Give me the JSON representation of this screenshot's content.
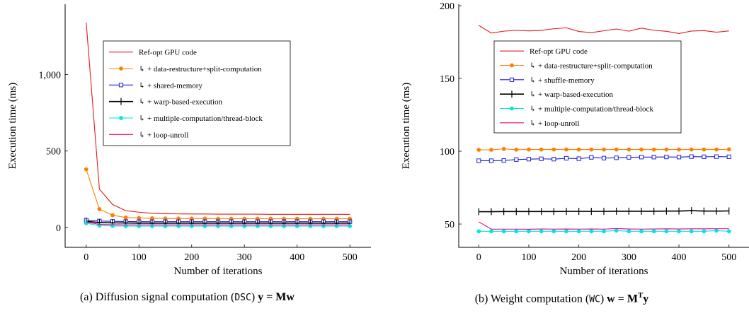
{
  "chart_data": [
    {
      "type": "line",
      "xlabel": "Number of iterations",
      "ylabel": "Execution time (ms)",
      "xlim": [
        -40,
        540
      ],
      "ylim": [
        -130,
        1460
      ],
      "xticks": [
        0,
        100,
        200,
        300,
        400,
        500
      ],
      "yticks": [
        0,
        500,
        1000
      ],
      "ytick_labels": [
        "0",
        "500",
        "1,000"
      ],
      "legend_position": "top-right",
      "caption": {
        "prefix": "(a) Diffusion signal computation (",
        "code": "DSC",
        "suffix": ") ",
        "equation": "y = Mw"
      },
      "x": [
        0,
        25,
        50,
        75,
        100,
        125,
        150,
        175,
        200,
        225,
        250,
        275,
        300,
        325,
        350,
        375,
        400,
        425,
        450,
        475,
        500
      ],
      "series": [
        {
          "name": "Ref-opt GPU code",
          "color": "#e41a1c",
          "marker": "none",
          "values": [
            1340,
            250,
            150,
            110,
            100,
            92,
            90,
            89,
            88,
            88,
            87,
            87,
            87,
            87,
            86,
            86,
            86,
            86,
            86,
            86,
            86
          ]
        },
        {
          "name": "↳ + data-restructure+split-computation",
          "color": "#ff8000",
          "marker": "circle",
          "values": [
            380,
            120,
            80,
            65,
            62,
            60,
            59,
            58,
            58,
            58,
            57,
            57,
            57,
            57,
            57,
            57,
            57,
            57,
            57,
            57,
            57
          ]
        },
        {
          "name": "↳ + shared-memory",
          "color": "#1f1fd6",
          "marker": "square",
          "values": [
            48,
            42,
            40,
            39,
            38,
            38,
            38,
            38,
            38,
            38,
            38,
            38,
            38,
            38,
            38,
            38,
            38,
            38,
            38,
            38,
            38
          ]
        },
        {
          "name": "↳ + warp-based-execution",
          "color": "#000000",
          "marker": "plus",
          "values": [
            40,
            32,
            30,
            29,
            28,
            28,
            28,
            28,
            28,
            28,
            28,
            28,
            28,
            28,
            28,
            28,
            28,
            28,
            28,
            28,
            28
          ]
        },
        {
          "name": "↳ + multiple-computation/thread-block",
          "color": "#00e5e5",
          "marker": "circle",
          "values": [
            28,
            12,
            10,
            9,
            9,
            9,
            9,
            9,
            9,
            9,
            9,
            9,
            9,
            9,
            9,
            9,
            9,
            9,
            9,
            9,
            9
          ]
        },
        {
          "name": "↳ + loop-unroll",
          "color": "#e6007e",
          "marker": "none",
          "values": [
            35,
            20,
            18,
            17,
            17,
            17,
            17,
            17,
            17,
            17,
            17,
            17,
            17,
            17,
            17,
            17,
            17,
            17,
            17,
            17,
            17
          ]
        }
      ]
    },
    {
      "type": "line",
      "xlabel": "Number of iterations",
      "ylabel": "Execution time (ms)",
      "xlim": [
        -40,
        540
      ],
      "ylim": [
        34,
        201
      ],
      "xticks": [
        0,
        100,
        200,
        300,
        400,
        500
      ],
      "yticks": [
        50,
        100,
        150,
        200
      ],
      "ytick_labels": [
        "50",
        "100",
        "150",
        "200"
      ],
      "legend_position": "top-right",
      "caption": {
        "prefix": "(b) Weight computation (",
        "code": "WC",
        "suffix": ") ",
        "equation": "w = M",
        "sup": "T",
        "equation_end": "y"
      },
      "x": [
        0,
        25,
        50,
        75,
        100,
        125,
        150,
        175,
        200,
        225,
        250,
        275,
        300,
        325,
        350,
        375,
        400,
        425,
        450,
        475,
        500
      ],
      "series": [
        {
          "name": "Ref-opt GPU code",
          "color": "#e41a1c",
          "marker": "none",
          "values": [
            186.5,
            181.2,
            182.5,
            183.1,
            182.7,
            183.0,
            184.2,
            184.8,
            182.3,
            181.5,
            182.8,
            184.0,
            182.5,
            184.6,
            183.1,
            182.4,
            180.9,
            182.6,
            182.9,
            181.8,
            182.7
          ]
        },
        {
          "name": "↳ + data-restructure+split-computation",
          "color": "#ff8000",
          "marker": "circle",
          "values": [
            101,
            101,
            101.6,
            101.1,
            101.2,
            101.2,
            101.2,
            101.2,
            101.2,
            101.2,
            101.2,
            101.2,
            101.2,
            101.2,
            101.2,
            101.2,
            101.2,
            101.2,
            101.2,
            101.2,
            101.3
          ]
        },
        {
          "name": "↳ + shuffle-memory",
          "color": "#1f1fd6",
          "marker": "square",
          "values": [
            93.5,
            93.5,
            93.7,
            94.3,
            94.6,
            94.8,
            94.6,
            95.2,
            94.9,
            95.8,
            95.3,
            95.5,
            95.8,
            96.0,
            96.0,
            96.1,
            96.0,
            96.3,
            96.2,
            96.3,
            96.2
          ]
        },
        {
          "name": "↳ + warp-based-execution",
          "color": "#000000",
          "marker": "plus",
          "values": [
            58.5,
            58.5,
            58.6,
            58.6,
            58.6,
            58.6,
            58.6,
            58.7,
            58.7,
            58.7,
            58.7,
            58.8,
            58.8,
            58.8,
            58.8,
            58.9,
            58.9,
            59.2,
            58.9,
            58.9,
            59.0
          ]
        },
        {
          "name": "↳ + multiple-computation/thread-block",
          "color": "#00e5e5",
          "marker": "circle",
          "values": [
            45.0,
            45.0,
            45.0,
            45.0,
            45.0,
            45.0,
            45.0,
            45.0,
            45.0,
            45.0,
            45.0,
            45.5,
            45.0,
            45.0,
            45.0,
            45.0,
            45.0,
            45.0,
            45.0,
            45.5,
            45.0
          ]
        },
        {
          "name": "↳ + loop-unroll",
          "color": "#e6007e",
          "marker": "none",
          "values": [
            51.5,
            46.5,
            46.5,
            46.5,
            46.4,
            46.6,
            46.5,
            46.6,
            46.5,
            46.6,
            46.5,
            46.9,
            46.6,
            46.5,
            46.6,
            46.7,
            46.6,
            46.7,
            46.7,
            46.8,
            46.8
          ]
        }
      ]
    }
  ]
}
